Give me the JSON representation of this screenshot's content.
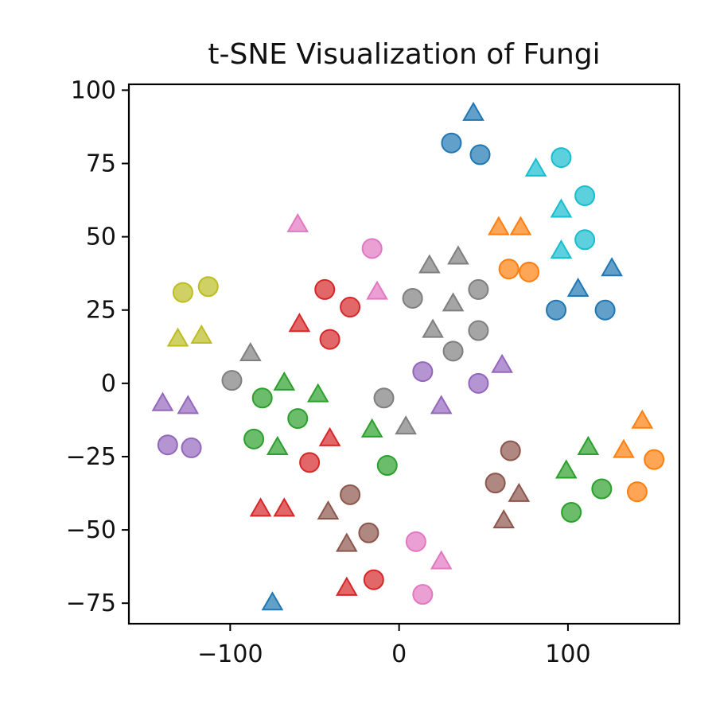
{
  "chart_data": {
    "type": "scatter",
    "title": "t-SNE Visualization of Fungi",
    "xlabel": "",
    "ylabel": "",
    "xlim": [
      -160,
      166
    ],
    "ylim": [
      -82,
      102
    ],
    "xticks": [
      -100,
      0,
      100
    ],
    "yticks": [
      100,
      75,
      50,
      25,
      0,
      -25,
      -50,
      -75
    ],
    "xtick_labels": [
      "−100",
      "0",
      "100"
    ],
    "ytick_labels": [
      "100",
      "75",
      "50",
      "25",
      "0",
      "−25",
      "−50",
      "−75"
    ],
    "grid": false,
    "legend": "none",
    "series": [
      {
        "color": "#1f77b4",
        "points": [
          {
            "x": 44,
            "y": 92,
            "m": "triangle"
          },
          {
            "x": 31,
            "y": 82,
            "m": "circle"
          },
          {
            "x": 48,
            "y": 78,
            "m": "circle"
          },
          {
            "x": 126,
            "y": 39,
            "m": "triangle"
          },
          {
            "x": 106,
            "y": 32,
            "m": "triangle"
          },
          {
            "x": 93,
            "y": 25,
            "m": "circle"
          },
          {
            "x": 122,
            "y": 25,
            "m": "circle"
          },
          {
            "x": -75,
            "y": -75,
            "m": "triangle"
          }
        ]
      },
      {
        "color": "#17becf",
        "points": [
          {
            "x": 96,
            "y": 77,
            "m": "circle"
          },
          {
            "x": 81,
            "y": 73,
            "m": "triangle"
          },
          {
            "x": 110,
            "y": 64,
            "m": "circle"
          },
          {
            "x": 96,
            "y": 59,
            "m": "triangle"
          },
          {
            "x": 110,
            "y": 49,
            "m": "circle"
          },
          {
            "x": 96,
            "y": 45,
            "m": "triangle"
          }
        ]
      },
      {
        "color": "#ff7f0e",
        "points": [
          {
            "x": 59,
            "y": 53,
            "m": "triangle"
          },
          {
            "x": 72,
            "y": 53,
            "m": "triangle"
          },
          {
            "x": 65,
            "y": 39,
            "m": "circle"
          },
          {
            "x": 77,
            "y": 38,
            "m": "circle"
          },
          {
            "x": 144,
            "y": -13,
            "m": "triangle"
          },
          {
            "x": 133,
            "y": -23,
            "m": "triangle"
          },
          {
            "x": 151,
            "y": -26,
            "m": "circle"
          },
          {
            "x": 141,
            "y": -37,
            "m": "circle"
          }
        ]
      },
      {
        "color": "#7f7f7f",
        "points": [
          {
            "x": 18,
            "y": 40,
            "m": "triangle"
          },
          {
            "x": 35,
            "y": 43,
            "m": "triangle"
          },
          {
            "x": 8,
            "y": 29,
            "m": "circle"
          },
          {
            "x": 32,
            "y": 27,
            "m": "triangle"
          },
          {
            "x": 47,
            "y": 32,
            "m": "circle"
          },
          {
            "x": 20,
            "y": 18,
            "m": "triangle"
          },
          {
            "x": 47,
            "y": 18,
            "m": "circle"
          },
          {
            "x": 32,
            "y": 11,
            "m": "circle"
          },
          {
            "x": -88,
            "y": 10,
            "m": "triangle"
          },
          {
            "x": -99,
            "y": 1,
            "m": "circle"
          },
          {
            "x": -9,
            "y": -5,
            "m": "circle"
          },
          {
            "x": 4,
            "y": -15,
            "m": "triangle"
          }
        ]
      },
      {
        "color": "#e377c2",
        "points": [
          {
            "x": -60,
            "y": 54,
            "m": "triangle"
          },
          {
            "x": -16,
            "y": 46,
            "m": "circle"
          },
          {
            "x": -13,
            "y": 31,
            "m": "triangle"
          },
          {
            "x": 10,
            "y": -54,
            "m": "circle"
          },
          {
            "x": 25,
            "y": -61,
            "m": "triangle"
          },
          {
            "x": 14,
            "y": -72,
            "m": "circle"
          }
        ]
      },
      {
        "color": "#bcbd22",
        "points": [
          {
            "x": -128,
            "y": 31,
            "m": "circle"
          },
          {
            "x": -113,
            "y": 33,
            "m": "circle"
          },
          {
            "x": -131,
            "y": 15,
            "m": "triangle"
          },
          {
            "x": -117,
            "y": 16,
            "m": "triangle"
          }
        ]
      },
      {
        "color": "#d62728",
        "points": [
          {
            "x": -44,
            "y": 32,
            "m": "circle"
          },
          {
            "x": -29,
            "y": 26,
            "m": "circle"
          },
          {
            "x": -59,
            "y": 20,
            "m": "triangle"
          },
          {
            "x": -41,
            "y": 15,
            "m": "circle"
          },
          {
            "x": -41,
            "y": -19,
            "m": "triangle"
          },
          {
            "x": -53,
            "y": -27,
            "m": "circle"
          },
          {
            "x": -82,
            "y": -43,
            "m": "triangle"
          },
          {
            "x": -68,
            "y": -43,
            "m": "triangle"
          },
          {
            "x": -31,
            "y": -70,
            "m": "triangle"
          },
          {
            "x": -15,
            "y": -67,
            "m": "circle"
          }
        ]
      },
      {
        "color": "#9467bd",
        "points": [
          {
            "x": 14,
            "y": 4,
            "m": "circle"
          },
          {
            "x": 47,
            "y": 0,
            "m": "circle"
          },
          {
            "x": 61,
            "y": 6,
            "m": "triangle"
          },
          {
            "x": 25,
            "y": -8,
            "m": "triangle"
          },
          {
            "x": -140,
            "y": -7,
            "m": "triangle"
          },
          {
            "x": -125,
            "y": -8,
            "m": "triangle"
          },
          {
            "x": -137,
            "y": -21,
            "m": "circle"
          },
          {
            "x": -123,
            "y": -22,
            "m": "circle"
          }
        ]
      },
      {
        "color": "#2ca02c",
        "points": [
          {
            "x": -68,
            "y": 0,
            "m": "triangle"
          },
          {
            "x": -81,
            "y": -5,
            "m": "circle"
          },
          {
            "x": -48,
            "y": -4,
            "m": "triangle"
          },
          {
            "x": -60,
            "y": -12,
            "m": "circle"
          },
          {
            "x": -86,
            "y": -19,
            "m": "circle"
          },
          {
            "x": -72,
            "y": -22,
            "m": "triangle"
          },
          {
            "x": -16,
            "y": -16,
            "m": "triangle"
          },
          {
            "x": -7,
            "y": -28,
            "m": "circle"
          },
          {
            "x": 112,
            "y": -22,
            "m": "triangle"
          },
          {
            "x": 99,
            "y": -30,
            "m": "triangle"
          },
          {
            "x": 120,
            "y": -36,
            "m": "circle"
          },
          {
            "x": 102,
            "y": -44,
            "m": "circle"
          }
        ]
      },
      {
        "color": "#8c564b",
        "points": [
          {
            "x": 66,
            "y": -23,
            "m": "circle"
          },
          {
            "x": 57,
            "y": -34,
            "m": "circle"
          },
          {
            "x": 71,
            "y": -38,
            "m": "triangle"
          },
          {
            "x": 62,
            "y": -47,
            "m": "triangle"
          },
          {
            "x": -29,
            "y": -38,
            "m": "circle"
          },
          {
            "x": -42,
            "y": -44,
            "m": "triangle"
          },
          {
            "x": -18,
            "y": -51,
            "m": "circle"
          },
          {
            "x": -31,
            "y": -55,
            "m": "triangle"
          }
        ]
      }
    ]
  }
}
